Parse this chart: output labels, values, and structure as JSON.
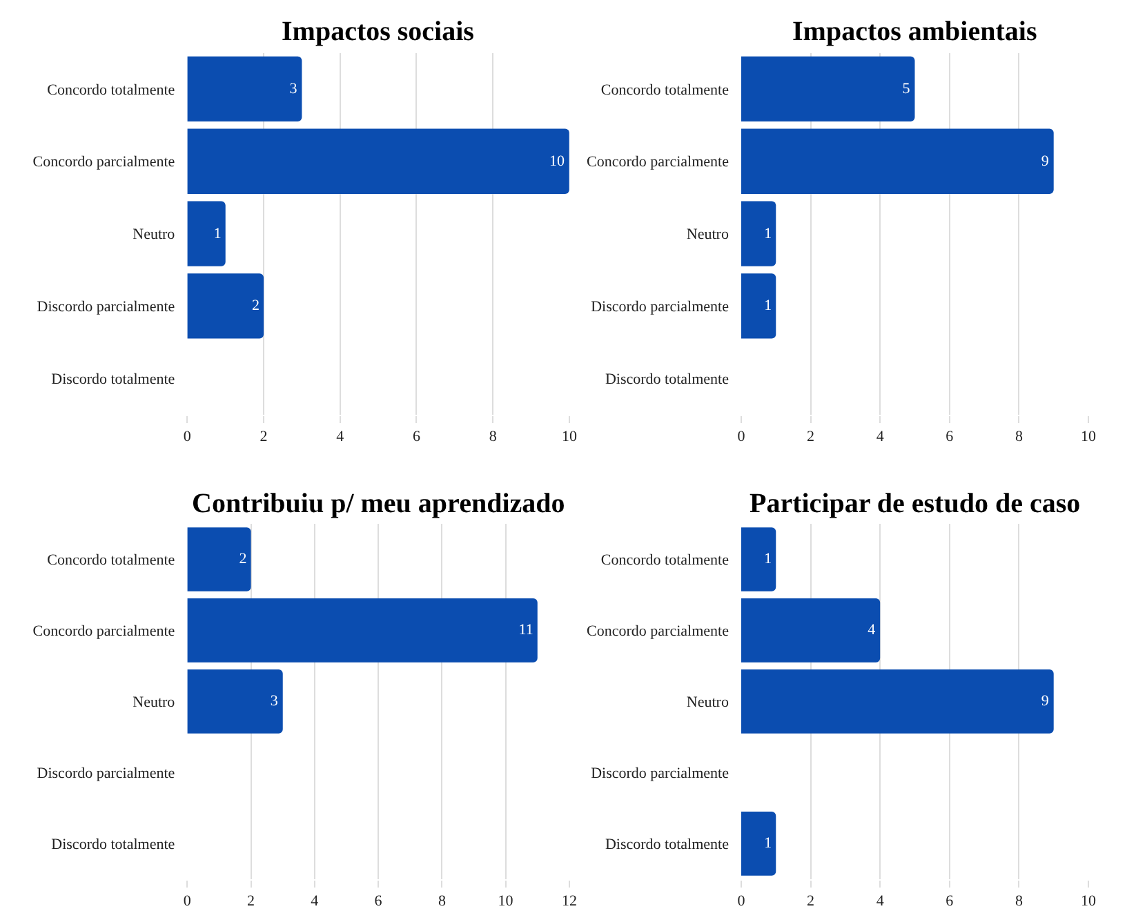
{
  "chart_data": [
    {
      "type": "bar",
      "orientation": "horizontal",
      "title": "Impactos sociais",
      "categories": [
        "Concordo totalmente",
        "Concordo parcialmente",
        "Neutro",
        "Discordo parcialmente",
        "Discordo totalmente"
      ],
      "values": [
        3,
        10,
        1,
        2,
        0
      ],
      "value_labels": [
        "3",
        "10",
        "1",
        "2",
        null
      ],
      "color": "#0b4db0",
      "xlim": [
        0,
        10
      ],
      "xticks": [
        0,
        2,
        4,
        6,
        8,
        10
      ],
      "grid": "x"
    },
    {
      "type": "bar",
      "orientation": "horizontal",
      "title": "Impactos ambientais",
      "categories": [
        "Concordo totalmente",
        "Concordo parcialmente",
        "Neutro",
        "Discordo parcialmente",
        "Discordo totalmente"
      ],
      "values": [
        5,
        9,
        1,
        1,
        0
      ],
      "value_labels": [
        "5",
        "9",
        "1",
        "1",
        null
      ],
      "color": "#0b4db0",
      "xlim": [
        0,
        10
      ],
      "xticks": [
        0,
        2,
        4,
        6,
        8,
        10
      ],
      "grid": "x"
    },
    {
      "type": "bar",
      "orientation": "horizontal",
      "title": "Contribuiu p/ meu aprendizado",
      "categories": [
        "Concordo totalmente",
        "Concordo parcialmente",
        "Neutro",
        "Discordo parcialmente",
        "Discordo totalmente"
      ],
      "values": [
        2,
        11,
        3,
        0,
        0
      ],
      "value_labels": [
        "2",
        "11",
        "3",
        null,
        null
      ],
      "color": "#0b4db0",
      "xlim": [
        0,
        12
      ],
      "xticks": [
        0,
        2,
        4,
        6,
        8,
        10,
        12
      ],
      "grid": "x"
    },
    {
      "type": "bar",
      "orientation": "horizontal",
      "title": "Participar de estudo de caso",
      "categories": [
        "Concordo totalmente",
        "Concordo parcialmente",
        "Neutro",
        "Discordo parcialmente",
        "Discordo totalmente"
      ],
      "values": [
        1,
        4,
        9,
        0,
        1
      ],
      "value_labels": [
        "1",
        "4",
        "9",
        null,
        "1"
      ],
      "color": "#0b4db0",
      "xlim": [
        0,
        10
      ],
      "xticks": [
        0,
        2,
        4,
        6,
        8,
        10
      ],
      "grid": "x"
    }
  ]
}
